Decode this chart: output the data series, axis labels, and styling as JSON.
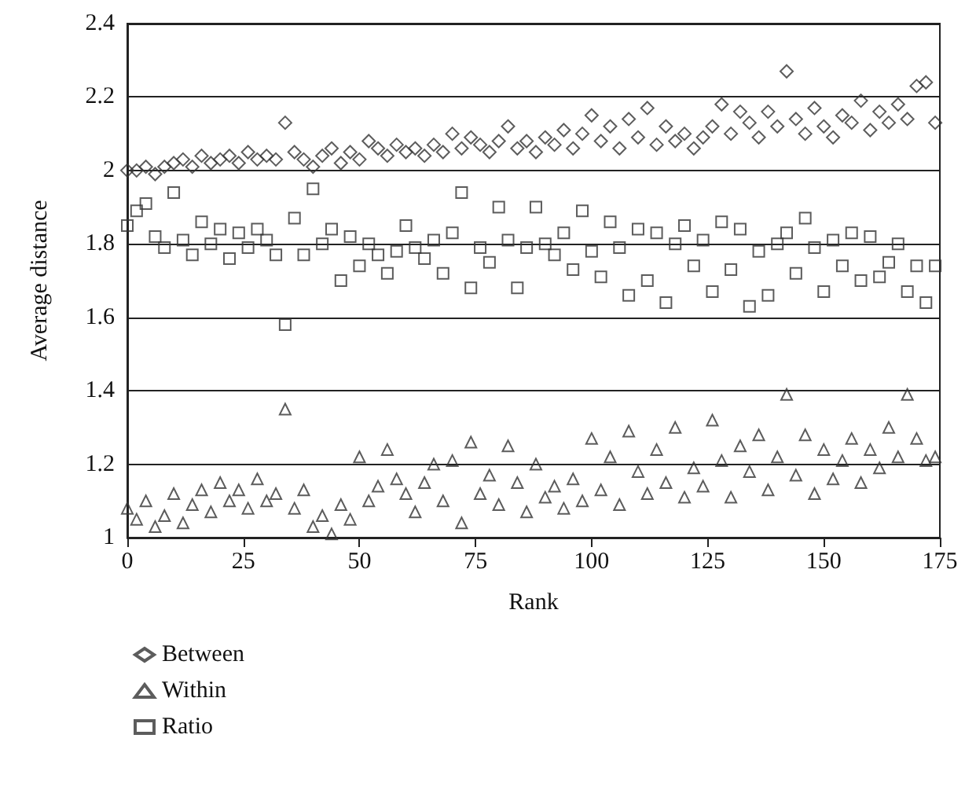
{
  "chart_data": {
    "type": "scatter",
    "xlabel": "Rank",
    "ylabel": "Average distance",
    "x": [
      0,
      2,
      4,
      6,
      8,
      10,
      12,
      14,
      16,
      18,
      20,
      22,
      24,
      26,
      28,
      30,
      32,
      34,
      36,
      38,
      40,
      42,
      44,
      46,
      48,
      50,
      52,
      54,
      56,
      58,
      60,
      62,
      64,
      66,
      68,
      70,
      72,
      74,
      76,
      78,
      80,
      82,
      84,
      86,
      88,
      90,
      92,
      94,
      96,
      98,
      100,
      102,
      104,
      106,
      108,
      110,
      112,
      114,
      116,
      118,
      120,
      122,
      124,
      126,
      128,
      130,
      132,
      134,
      136,
      138,
      140,
      142,
      144,
      146,
      148,
      150,
      152,
      154,
      156,
      158,
      160,
      162,
      164,
      166,
      168,
      170,
      172,
      174
    ],
    "series": [
      {
        "name": "Between",
        "color": "#333333",
        "marker": "diamond",
        "values": [
          2.0,
          2.0,
          2.01,
          1.99,
          2.01,
          2.02,
          2.03,
          2.01,
          2.04,
          2.02,
          2.03,
          2.04,
          2.02,
          2.05,
          2.03,
          2.04,
          2.03,
          2.13,
          2.05,
          2.03,
          2.01,
          2.04,
          2.06,
          2.02,
          2.05,
          2.03,
          2.08,
          2.06,
          2.04,
          2.07,
          2.05,
          2.06,
          2.04,
          2.07,
          2.05,
          2.1,
          2.06,
          2.09,
          2.07,
          2.05,
          2.08,
          2.12,
          2.06,
          2.08,
          2.05,
          2.09,
          2.07,
          2.11,
          2.06,
          2.1,
          2.15,
          2.08,
          2.12,
          2.06,
          2.14,
          2.09,
          2.17,
          2.07,
          2.12,
          2.08,
          2.1,
          2.06,
          2.09,
          2.12,
          2.18,
          2.1,
          2.16,
          2.13,
          2.09,
          2.16,
          2.12,
          2.27,
          2.14,
          2.1,
          2.17,
          2.12,
          2.09,
          2.15,
          2.13,
          2.19,
          2.11,
          2.16,
          2.13,
          2.18,
          2.14,
          2.23,
          2.24,
          2.13
        ]
      },
      {
        "name": "Within",
        "color": "#333333",
        "marker": "triangle",
        "values": [
          1.08,
          1.05,
          1.1,
          1.03,
          1.06,
          1.12,
          1.04,
          1.09,
          1.13,
          1.07,
          1.15,
          1.1,
          1.13,
          1.08,
          1.16,
          1.1,
          1.12,
          1.35,
          1.08,
          1.13,
          1.03,
          1.06,
          1.01,
          1.09,
          1.05,
          1.22,
          1.1,
          1.14,
          1.24,
          1.16,
          1.12,
          1.07,
          1.15,
          1.2,
          1.1,
          1.21,
          1.04,
          1.26,
          1.12,
          1.17,
          1.09,
          1.25,
          1.15,
          1.07,
          1.2,
          1.11,
          1.14,
          1.08,
          1.16,
          1.1,
          1.27,
          1.13,
          1.22,
          1.09,
          1.29,
          1.18,
          1.12,
          1.24,
          1.15,
          1.3,
          1.11,
          1.19,
          1.14,
          1.32,
          1.21,
          1.11,
          1.25,
          1.18,
          1.28,
          1.13,
          1.22,
          1.39,
          1.17,
          1.28,
          1.12,
          1.24,
          1.16,
          1.21,
          1.27,
          1.15,
          1.24,
          1.19,
          1.3,
          1.22,
          1.39,
          1.27,
          1.21,
          1.22
        ]
      },
      {
        "name": "Ratio",
        "color": "#333333",
        "marker": "square",
        "values": [
          1.85,
          1.89,
          1.91,
          1.82,
          1.79,
          1.94,
          1.81,
          1.77,
          1.86,
          1.8,
          1.84,
          1.76,
          1.83,
          1.79,
          1.84,
          1.81,
          1.77,
          1.58,
          1.87,
          1.77,
          1.95,
          1.8,
          1.84,
          1.7,
          1.82,
          1.74,
          1.8,
          1.77,
          1.72,
          1.78,
          1.85,
          1.79,
          1.76,
          1.81,
          1.72,
          1.83,
          1.94,
          1.68,
          1.79,
          1.75,
          1.9,
          1.81,
          1.68,
          1.79,
          1.9,
          1.8,
          1.77,
          1.83,
          1.73,
          1.89,
          1.78,
          1.71,
          1.86,
          1.79,
          1.66,
          1.84,
          1.7,
          1.83,
          1.64,
          1.8,
          1.85,
          1.74,
          1.81,
          1.67,
          1.86,
          1.73,
          1.84,
          1.63,
          1.78,
          1.66,
          1.8,
          1.83,
          1.72,
          1.87,
          1.79,
          1.67,
          1.81,
          1.74,
          1.83,
          1.7,
          1.82,
          1.71,
          1.75,
          1.8,
          1.67,
          1.74,
          1.64,
          1.74
        ]
      }
    ],
    "xlim": [
      0,
      175
    ],
    "xticks": [
      0,
      25,
      50,
      75,
      100,
      125,
      150,
      175
    ],
    "ylim": [
      1,
      2.4
    ],
    "yticks": [
      1,
      1.2,
      1.4,
      1.6,
      1.8,
      2,
      2.2,
      2.4
    ],
    "grid": "y",
    "legend": "bottom left"
  }
}
